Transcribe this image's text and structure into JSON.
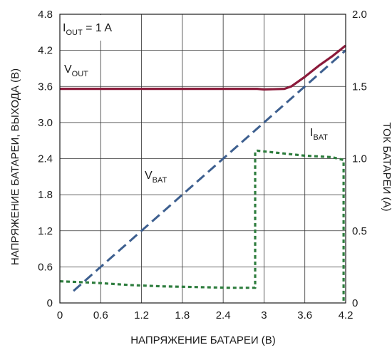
{
  "chart_data": {
    "type": "line",
    "xlabel": "НАПРЯЖЕНИЕ БАТАРЕИ (В)",
    "ylabel_left": "НАПРЯЖЕНИЕ БАТАРЕИ, ВЫХОДА (В)",
    "ylabel_right": "ТОК БАТАРЕИ (А)",
    "xlim": [
      0,
      4.2
    ],
    "ylim_left": [
      0,
      4.8
    ],
    "ylim_right": [
      0,
      2.0
    ],
    "xticks": [
      "0",
      "0.6",
      "1.2",
      "1.8",
      "2.4",
      "3",
      "3.6",
      "4.2"
    ],
    "yticks_left": [
      "0",
      "0.6",
      "1.2",
      "1.8",
      "2.4",
      "3.0",
      "3.6",
      "4.2",
      "4.8"
    ],
    "yticks_right": [
      "0",
      "0.5",
      "1.0",
      "1.5",
      "2.0"
    ],
    "grid": true,
    "condition": {
      "main": "I",
      "sub": "OUT",
      "rest": " = 1 A"
    },
    "series": [
      {
        "label_main": "V",
        "label_sub": "OUT",
        "color": "#8b1a3a",
        "style": "solid",
        "axis": "left",
        "x": [
          0,
          1.0,
          2.0,
          2.9,
          3.0,
          3.3,
          3.4,
          3.6,
          3.8,
          4.0,
          4.2
        ],
        "y": [
          3.56,
          3.56,
          3.56,
          3.56,
          3.55,
          3.56,
          3.6,
          3.76,
          3.94,
          4.1,
          4.28
        ]
      },
      {
        "label_main": "V",
        "label_sub": "BAT",
        "color": "#3d5f8f",
        "style": "dashed",
        "axis": "left",
        "x": [
          0.2,
          4.2
        ],
        "y": [
          0.2,
          4.2
        ]
      },
      {
        "label_main": "I",
        "label_sub": "BAT",
        "color": "#2e7d3e",
        "style": "dotted",
        "axis": "right",
        "x": [
          0,
          0.5,
          1.0,
          1.5,
          2.0,
          2.5,
          2.87,
          2.87,
          2.9,
          3.2,
          3.6,
          4.0,
          4.17,
          4.17
        ],
        "y": [
          0.15,
          0.14,
          0.125,
          0.115,
          0.11,
          0.105,
          0.105,
          1.05,
          1.055,
          1.04,
          1.02,
          1.01,
          0.99,
          0
        ]
      }
    ]
  }
}
